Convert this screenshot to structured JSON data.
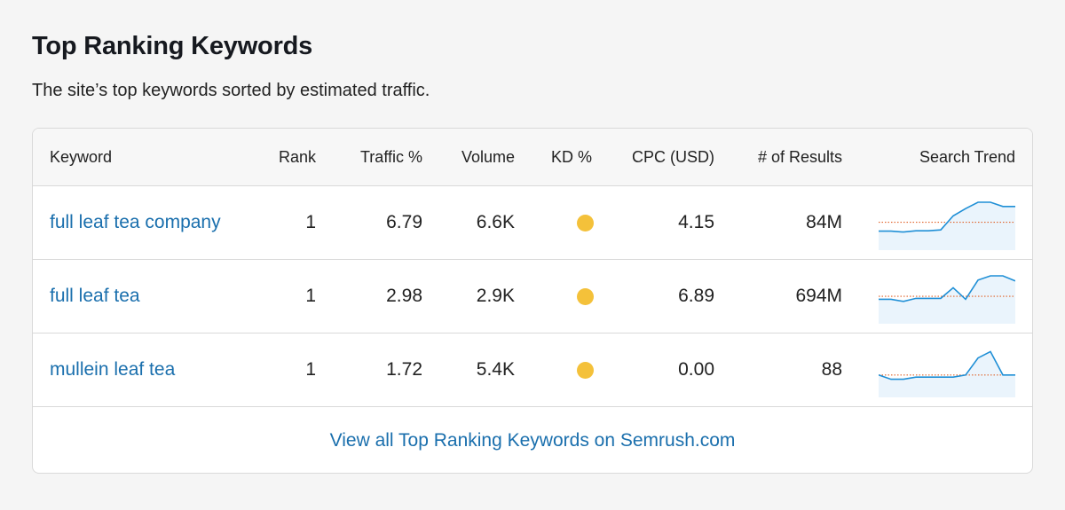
{
  "title": "Top Ranking Keywords",
  "subtitle": "The site’s top keywords sorted by estimated traffic.",
  "colors": {
    "link": "#1a6fad",
    "kd_dot": "#f4c13a",
    "trend_line": "#1f8fd6",
    "trend_fill": "#eaf4fc",
    "trend_baseline": "#e0632a"
  },
  "table": {
    "headers": {
      "keyword": "Keyword",
      "rank": "Rank",
      "traffic": "Traffic %",
      "volume": "Volume",
      "kd": "KD %",
      "cpc": "CPC (USD)",
      "results": "# of Results",
      "trend": "Search Trend"
    },
    "rows": [
      {
        "keyword": "full leaf tea company",
        "rank": "1",
        "traffic": "6.79",
        "volume": "6.6K",
        "kd_color": "yellow",
        "cpc": "4.15",
        "results": "84M",
        "trend": [
          0.32,
          0.32,
          0.3,
          0.33,
          0.33,
          0.35,
          0.68,
          0.85,
          1.0,
          1.0,
          0.9,
          0.9
        ],
        "trend_baseline": 0.53
      },
      {
        "keyword": "full leaf tea",
        "rank": "1",
        "traffic": "2.98",
        "volume": "2.9K",
        "kd_color": "yellow",
        "cpc": "6.89",
        "results": "694M",
        "trend": [
          0.45,
          0.45,
          0.4,
          0.47,
          0.47,
          0.47,
          0.72,
          0.45,
          0.9,
          1.0,
          1.0,
          0.88
        ],
        "trend_baseline": 0.52
      },
      {
        "keyword": "mullein leaf tea",
        "rank": "1",
        "traffic": "1.72",
        "volume": "5.4K",
        "kd_color": "yellow",
        "cpc": "0.00",
        "results": "88",
        "trend": [
          0.4,
          0.3,
          0.3,
          0.35,
          0.35,
          0.35,
          0.35,
          0.4,
          0.8,
          0.95,
          0.4,
          0.4
        ],
        "trend_baseline": 0.4
      }
    ]
  },
  "footer_link": "View all Top Ranking Keywords on Semrush.com"
}
